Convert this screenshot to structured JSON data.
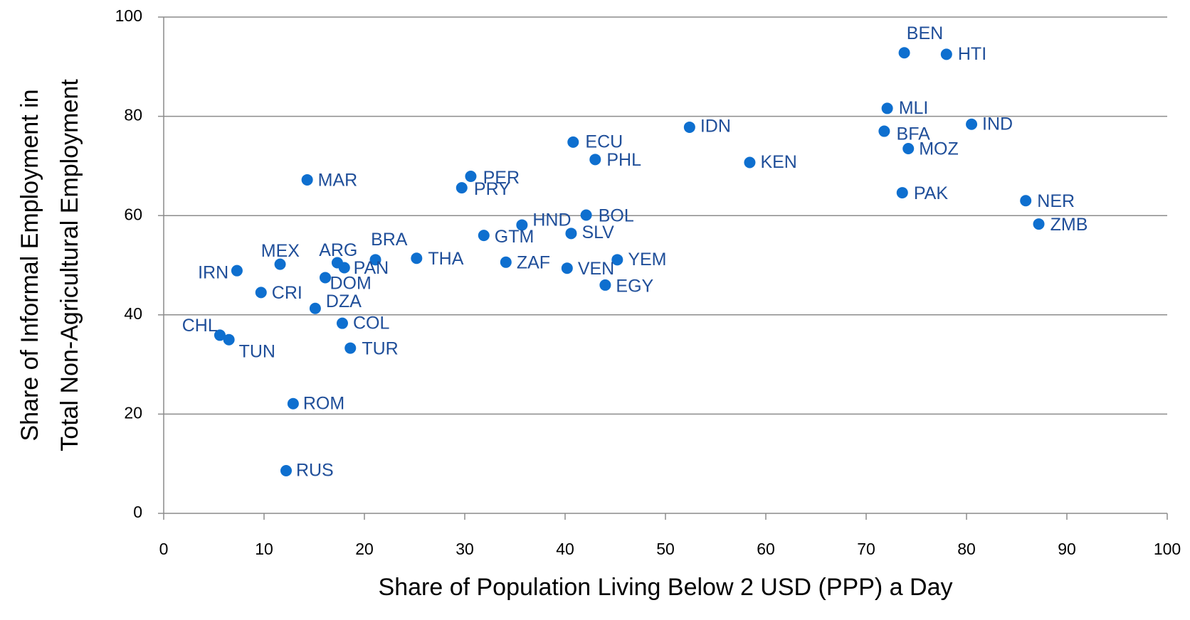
{
  "chart_data": {
    "type": "scatter",
    "x_label": "Share of Population Living Below  2 USD  (PPP) a Day",
    "y_label": [
      "Share  of Informal Employment in",
      "Total Non-Agricultural Employment"
    ],
    "labels": [
      "BEN",
      "HTI",
      "MLI",
      "IND",
      "BFA",
      "MOZ",
      "IDN",
      "ECU",
      "PHL",
      "KEN",
      "MAR",
      "PER",
      "PRY",
      "PAK",
      "NER",
      "ZMB",
      "BOL",
      "HND",
      "SLV",
      "GTM",
      "BRA",
      "THA",
      "YEM",
      "ZAF",
      "VEN",
      "MEX",
      "ARG",
      "PAN",
      "IRN",
      "DOM",
      "EGY",
      "CRI",
      "DZA",
      "COL",
      "CHL",
      "TUN",
      "TUR",
      "ROM",
      "RUS"
    ],
    "x": [
      73.8,
      78.0,
      72.1,
      80.5,
      71.8,
      74.2,
      52.4,
      40.8,
      43.0,
      58.4,
      14.3,
      30.6,
      29.7,
      73.6,
      85.9,
      87.2,
      42.1,
      35.7,
      40.6,
      31.9,
      21.1,
      25.2,
      45.2,
      34.1,
      40.2,
      11.6,
      17.3,
      18.0,
      7.3,
      16.1,
      44.0,
      9.7,
      15.1,
      17.8,
      5.6,
      6.5,
      18.6,
      12.9,
      12.2
    ],
    "series": [
      {
        "color": "#0e6fcf",
        "values": [
          92.8,
          92.5,
          81.6,
          78.4,
          77.0,
          73.5,
          77.8,
          74.8,
          71.3,
          70.7,
          67.2,
          67.9,
          65.6,
          64.6,
          63.0,
          58.3,
          60.1,
          58.1,
          56.4,
          56.0,
          51.1,
          51.4,
          51.1,
          50.6,
          49.4,
          50.2,
          50.5,
          49.5,
          48.9,
          47.5,
          46.0,
          44.5,
          41.3,
          38.3,
          35.9,
          35.0,
          33.3,
          22.1,
          8.6
        ]
      }
    ],
    "label_color": "#1f4e99",
    "xlim": [
      0,
      100
    ],
    "xticks": [
      0,
      10,
      20,
      30,
      40,
      50,
      60,
      70,
      80,
      90,
      100
    ],
    "ylim": [
      0,
      100
    ],
    "yticks": [
      0,
      20,
      40,
      60,
      80,
      100
    ],
    "grid": true
  }
}
